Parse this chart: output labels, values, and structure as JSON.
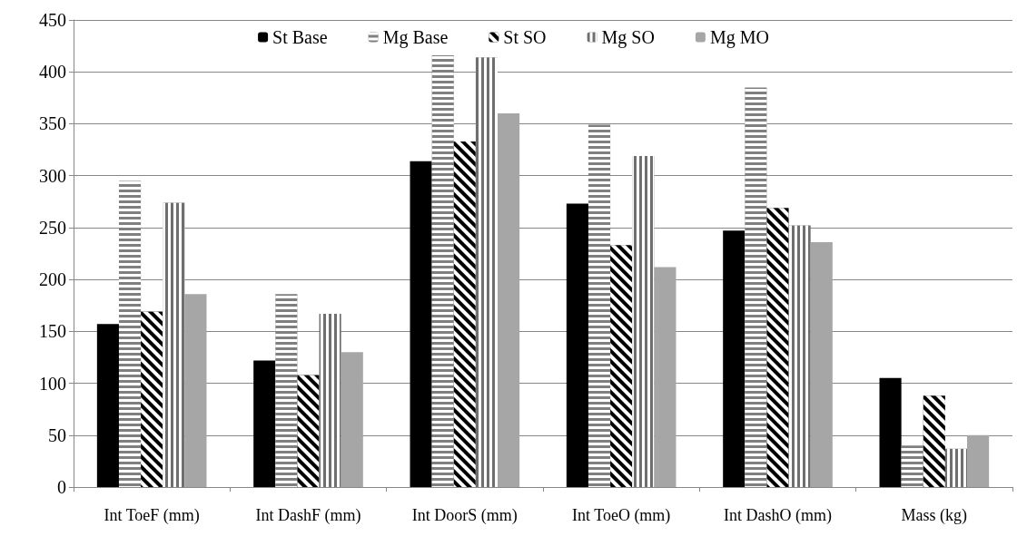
{
  "chart_data": {
    "type": "bar",
    "categories": [
      "Int ToeF (mm)",
      "Int DashF (mm)",
      "Int DoorS (mm)",
      "Int ToeO (mm)",
      "Int DashO (mm)",
      "Mass (kg)"
    ],
    "series": [
      {
        "name": "St Base",
        "color": "#000000",
        "values": [
          157,
          122,
          314,
          273,
          247,
          105
        ]
      },
      {
        "name": "Mg Base",
        "color": "#7f7f7f",
        "values": [
          295,
          186,
          416,
          349,
          385,
          40
        ]
      },
      {
        "name": "St SO",
        "color": "#000000",
        "values": [
          169,
          108,
          333,
          233,
          269,
          88
        ]
      },
      {
        "name": "Mg SO",
        "color": "#6f6f6f",
        "values": [
          274,
          167,
          414,
          319,
          252,
          37
        ]
      },
      {
        "name": "Mg MO",
        "color": "#a6a6a6",
        "values": [
          186,
          130,
          360,
          212,
          236,
          50
        ]
      }
    ],
    "ylim": [
      0,
      450
    ],
    "yticks": [
      0,
      50,
      100,
      150,
      200,
      250,
      300,
      350,
      400,
      450
    ],
    "grid": "y",
    "legend": "top"
  }
}
